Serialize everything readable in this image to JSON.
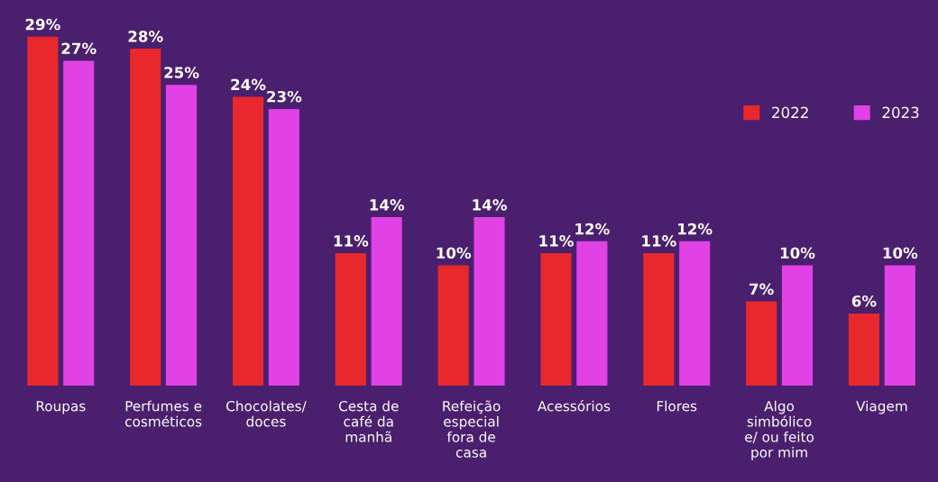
{
  "chart_data": {
    "type": "bar",
    "categories": [
      "Roupas",
      "Perfumes e cosméticos",
      "Chocolates/ doces",
      "Cesta de café da manhã",
      "Refeição especial fora de casa",
      "Acessórios",
      "Flores",
      "Algo simbólico e/ ou feito por mim",
      "Viagem"
    ],
    "series": [
      {
        "name": "2022",
        "color": "#e8282c",
        "values": [
          29,
          28,
          24,
          11,
          10,
          11,
          11,
          7,
          6
        ],
        "value_labels": [
          "29%",
          "28%",
          "24%",
          "11%",
          "10%",
          "11%",
          "11%",
          "7%",
          "6%"
        ]
      },
      {
        "name": "2023",
        "color": "#e042e6",
        "values": [
          27,
          25,
          23,
          14,
          14,
          12,
          12,
          10,
          10
        ],
        "value_labels": [
          "27%",
          "25%",
          "23%",
          "14%",
          "14%",
          "12%",
          "12%",
          "10%",
          "10%"
        ]
      }
    ],
    "tick_labels": "x",
    "legend": "top right",
    "grid": false
  }
}
